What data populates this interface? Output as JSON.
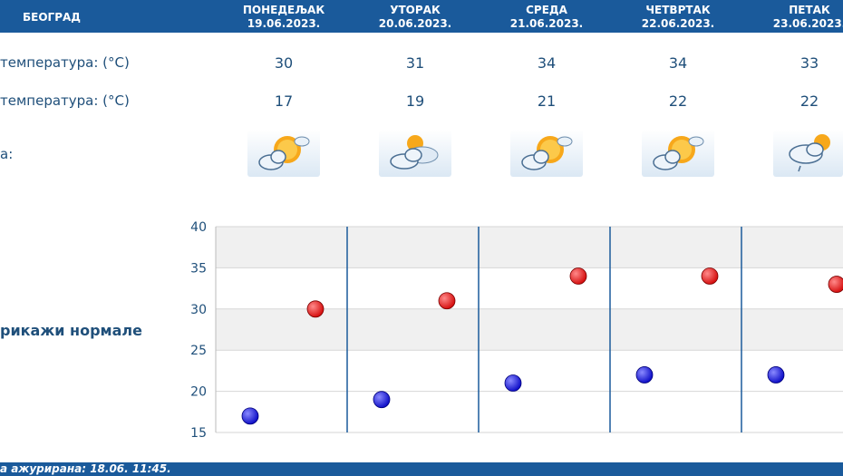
{
  "header": {
    "city": "БЕОГРАД",
    "days": [
      {
        "name": "ПОНЕДЕЉАК",
        "date": "19.06.2023."
      },
      {
        "name": "УТОРАК",
        "date": "20.06.2023."
      },
      {
        "name": "СРЕДА",
        "date": "21.06.2023."
      },
      {
        "name": "ЧЕТВРТАК",
        "date": "22.06.2023."
      },
      {
        "name": "ПЕТАК",
        "date": "23.06.2023."
      }
    ]
  },
  "rows": {
    "max_label": "температура: (°C)",
    "min_label": "температура: (°C)",
    "icon_label": "а:",
    "max": [
      "30",
      "31",
      "34",
      "34",
      "33"
    ],
    "min": [
      "17",
      "19",
      "21",
      "22",
      "22"
    ],
    "icons": [
      "sun-cloud-icon",
      "cloud-sun-icon",
      "sun-cloud-icon",
      "sun-cloud-icon",
      "cloud-rain-icon"
    ]
  },
  "toggle_normals": "рикажи нормале",
  "footer": "а ажурирана:  18.06.  11:45.",
  "colors": {
    "brand": "#1a5a9b",
    "max_dot": "#d61010",
    "min_dot": "#1010c8"
  },
  "chart_data": {
    "type": "scatter",
    "categories": [
      "19.06.2023.",
      "20.06.2023.",
      "21.06.2023.",
      "22.06.2023.",
      "23.06.2023."
    ],
    "ylim": [
      15,
      40
    ],
    "yticks": [
      "15",
      "20",
      "25",
      "30",
      "35",
      "40"
    ],
    "series": [
      {
        "values": [
          30,
          31,
          34,
          34,
          33
        ]
      },
      {
        "values": [
          17,
          19,
          21,
          22,
          22
        ]
      }
    ]
  }
}
